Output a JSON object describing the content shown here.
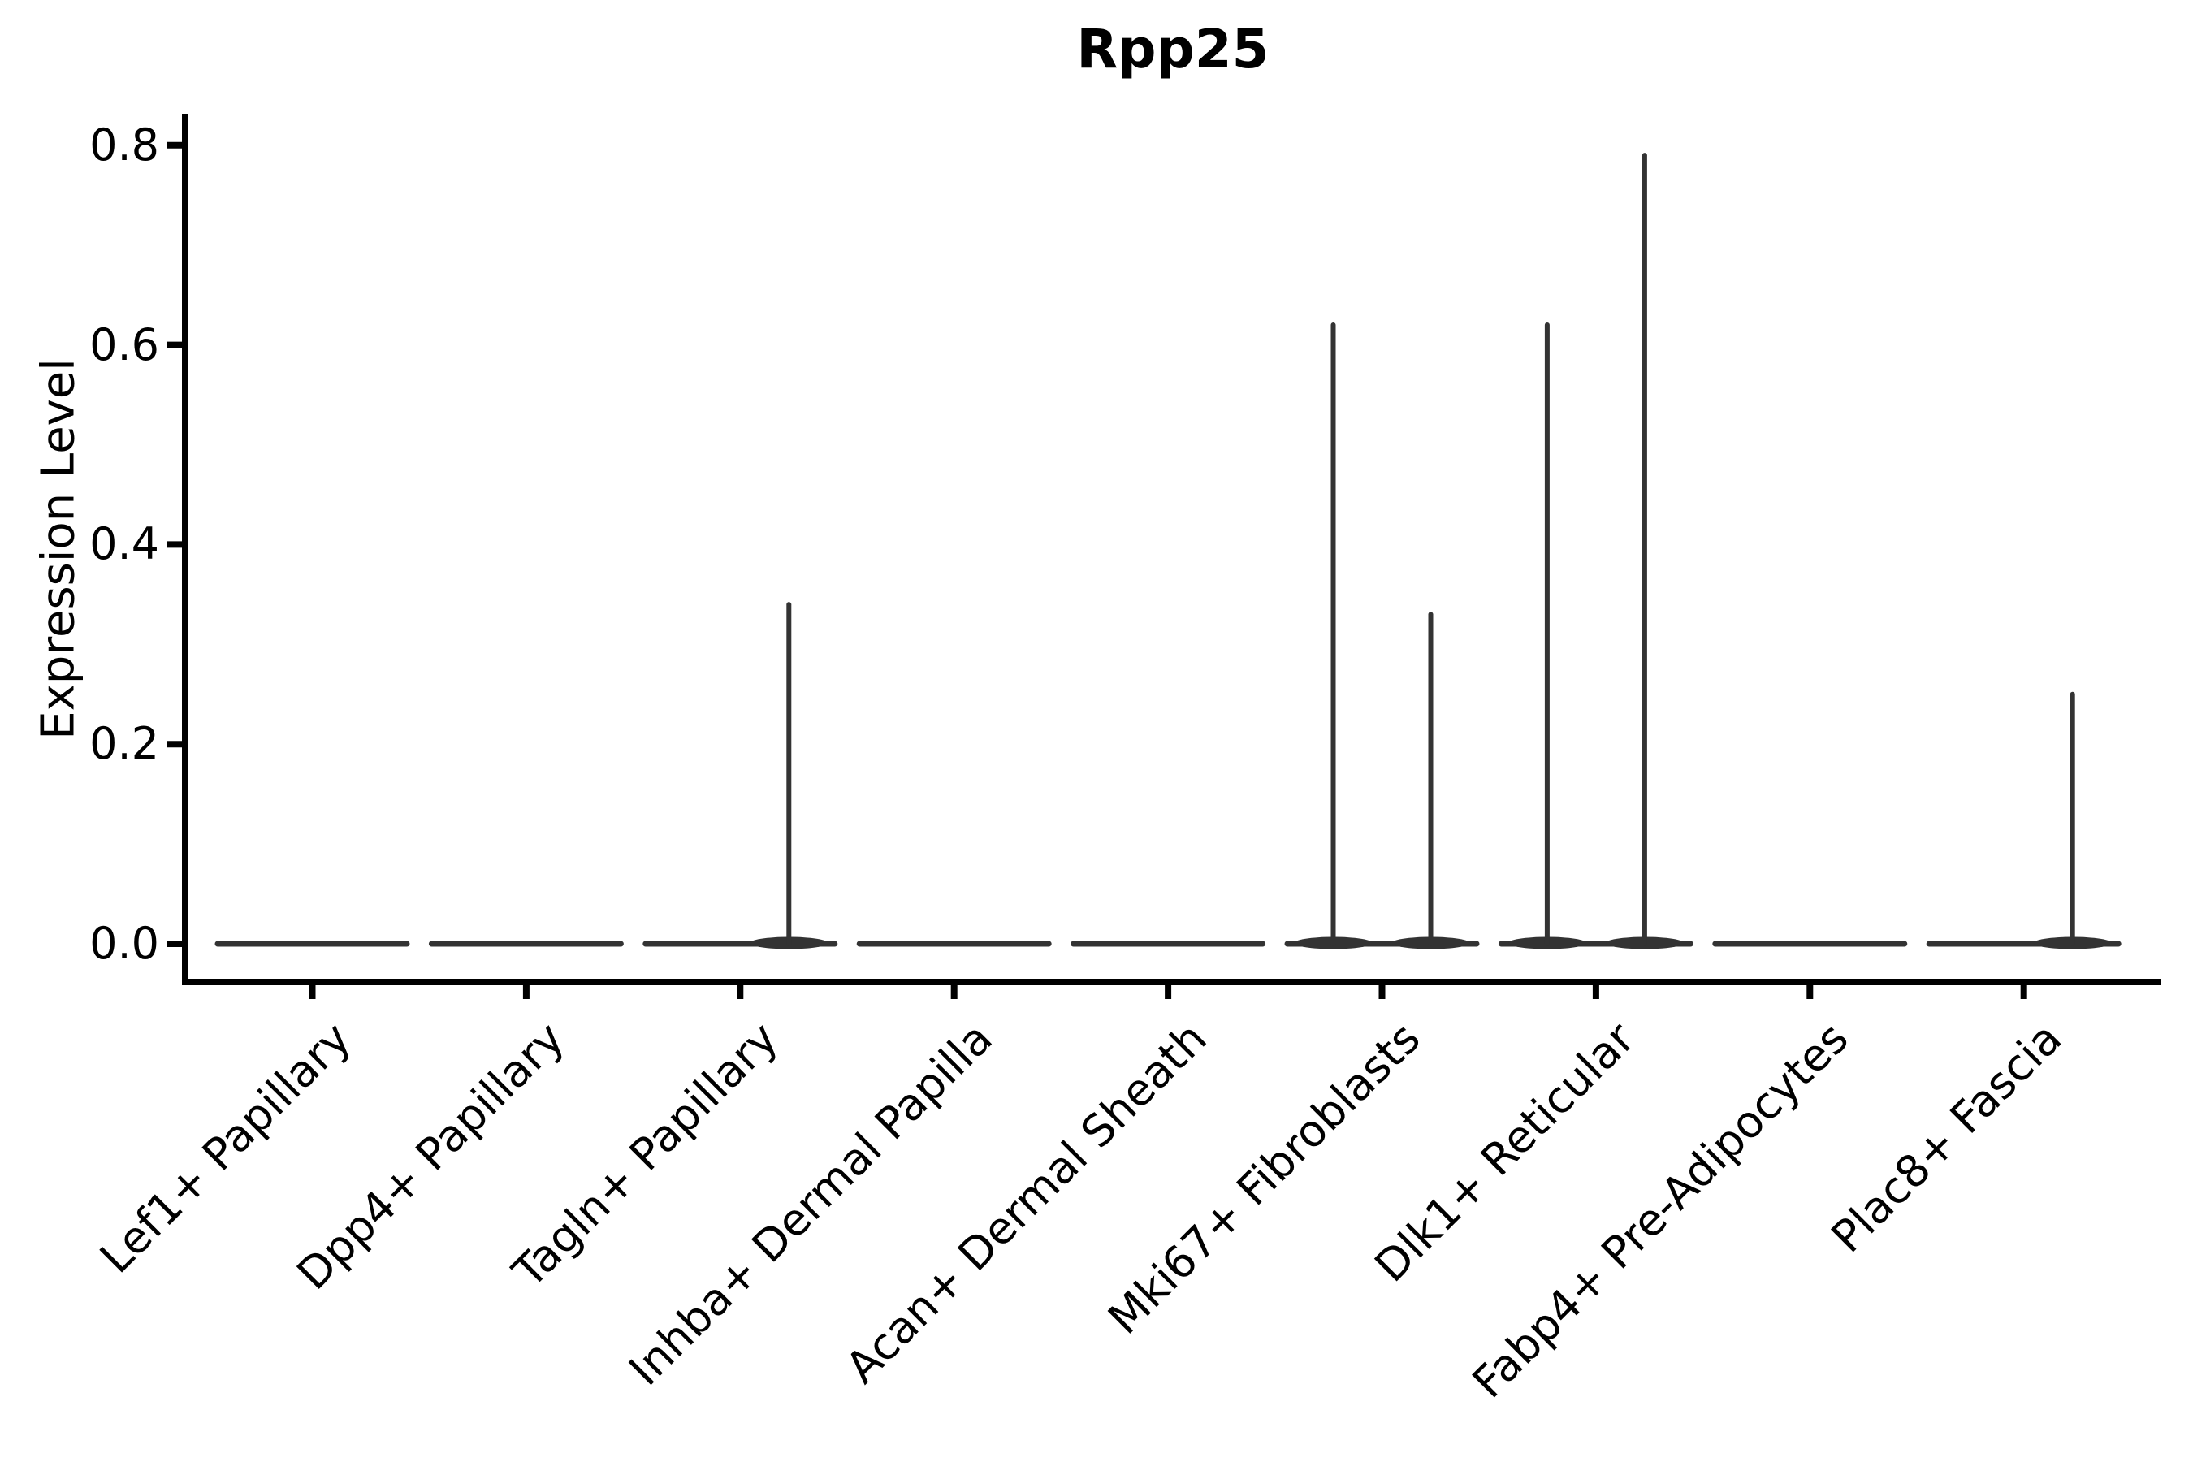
{
  "chart_data": {
    "type": "violin",
    "title": "Rpp25",
    "ylabel": "Expression Level",
    "xlabel": "",
    "yticks": [
      "0.0",
      "0.2",
      "0.4",
      "0.6",
      "0.8"
    ],
    "ytick_values": [
      0.0,
      0.2,
      0.4,
      0.6,
      0.8
    ],
    "ylim": [
      -0.04,
      0.83
    ],
    "grid": false,
    "legend_position": "none",
    "categories": [
      "Lef1+ Papillary",
      "Dpp4+ Papillary",
      "Tagln+ Papillary",
      "Inhba+ Dermal Papilla",
      "Acan+ Dermal Sheath",
      "Mki67+ Fibroblasts",
      "Dlk1+ Reticular",
      "Fabp4+ Pre-Adipocytes",
      "Plac8+ Fascia"
    ],
    "violins_per_category": 2,
    "series": [
      {
        "name": "left violin",
        "max_expression": [
          0,
          0,
          0,
          0,
          0,
          0.62,
          0.62,
          0,
          0
        ]
      },
      {
        "name": "right violin",
        "max_expression": [
          0,
          0,
          0.34,
          0,
          0,
          0.33,
          0.79,
          0,
          0.25
        ]
      }
    ],
    "baseline_value": 0.0,
    "colors": {
      "violin": "#333333",
      "axis": "#000000",
      "text": "#000000",
      "background": "#ffffff"
    }
  }
}
